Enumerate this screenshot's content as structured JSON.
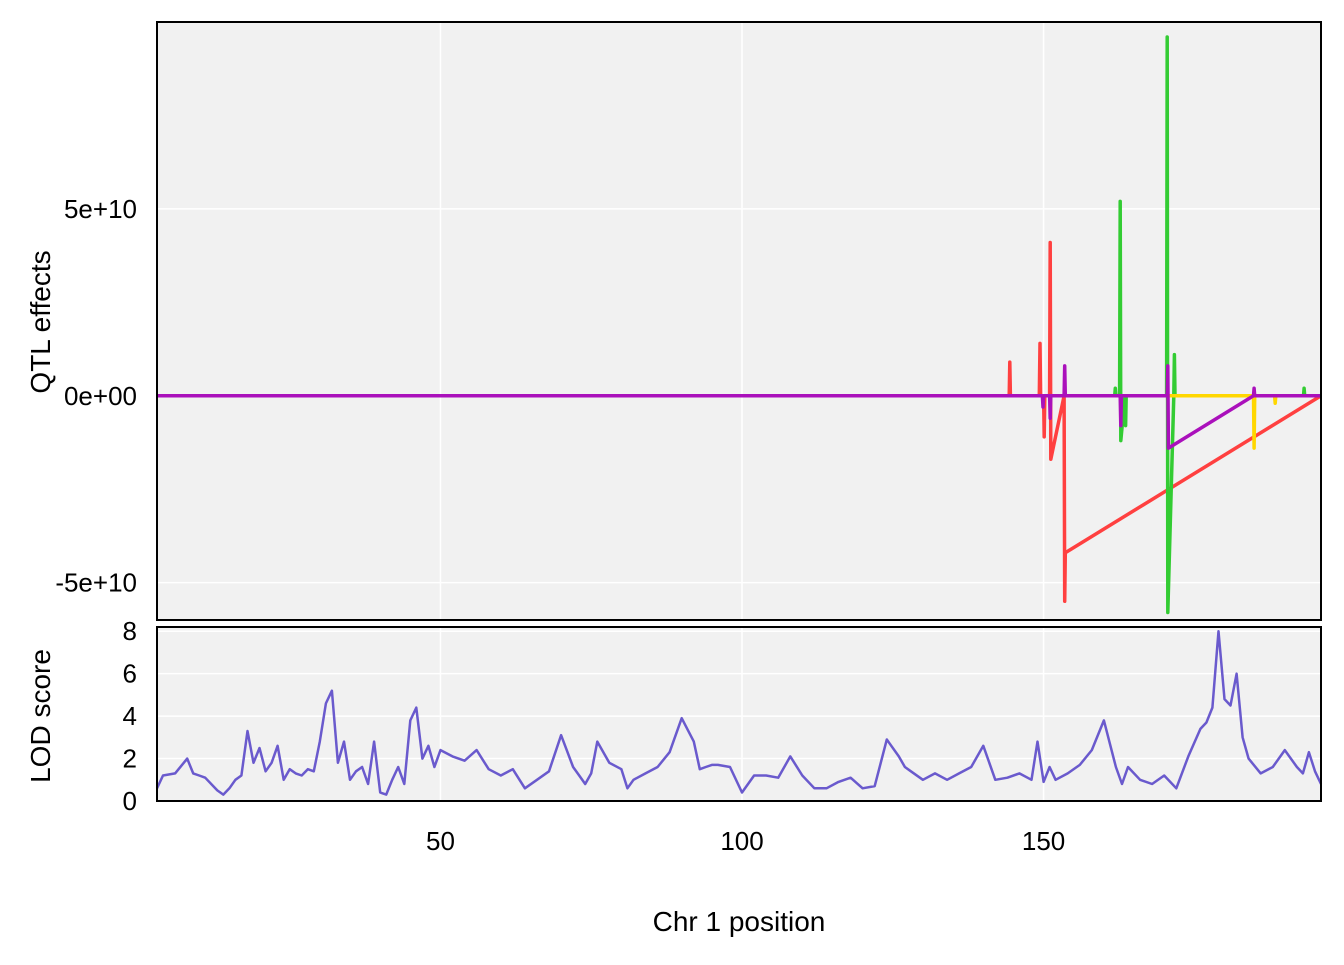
{
  "chart_data": [
    {
      "type": "line",
      "panel": "QTL effects",
      "ylabel": "QTL effects",
      "xlabel": "",
      "xlim": [
        3,
        196
      ],
      "ylim": [
        -60000000000,
        100000000000
      ],
      "xticks": [
        50,
        100,
        150
      ],
      "yticks": [
        -50000000000,
        0,
        50000000000
      ],
      "ytick_labels": [
        "-5e+10",
        "0e+00",
        "5e+10"
      ],
      "grid": true,
      "background": "#f1f1f1",
      "series": [
        {
          "color": "#ff4040",
          "x": [
            3,
            144.3,
            144.4,
            144.5,
            149.3,
            149.4,
            149.5,
            150.0,
            150.1,
            150.2,
            151.0,
            151.1,
            151.2,
            153.4,
            153.5,
            153.6,
            196
          ],
          "values": [
            0,
            0,
            9000000000,
            0,
            0,
            14000000000,
            0,
            0,
            -11000000000,
            0,
            0,
            41000000000,
            -17000000000,
            0,
            -55000000000,
            -42000000000,
            0
          ]
        },
        {
          "color": "#33cc33",
          "x": [
            3,
            161.8,
            161.9,
            162.0,
            162.6,
            162.7,
            162.8,
            163.5,
            163.6,
            163.7,
            170.4,
            170.5,
            170.6,
            171.6,
            171.7,
            171.8,
            193.1,
            193.2,
            193.3,
            196
          ],
          "values": [
            0,
            0,
            2000000000,
            0,
            0,
            52000000000,
            -12000000000,
            0,
            -8000000000,
            0,
            0,
            96000000000,
            -58000000000,
            0,
            11000000000,
            0,
            0,
            2000000000,
            0,
            0
          ]
        },
        {
          "color": "#ffd700",
          "x": [
            3,
            184.8,
            184.9,
            185.0,
            188.3,
            188.4,
            188.5,
            196
          ],
          "values": [
            0,
            0,
            -14000000000,
            0,
            0,
            -2000000000,
            0,
            0
          ]
        },
        {
          "color": "#aa10bb",
          "x": [
            3,
            149.8,
            149.9,
            150.0,
            151.0,
            151.1,
            151.2,
            153.4,
            153.5,
            153.6,
            162.7,
            162.8,
            162.9,
            170.5,
            170.6,
            170.7,
            184.8,
            184.9,
            185.0,
            196
          ],
          "values": [
            0,
            0,
            -3000000000,
            0,
            0,
            -6000000000,
            0,
            0,
            8000000000,
            0,
            0,
            -8000000000,
            0,
            0,
            8000000000,
            -14000000000,
            0,
            2000000000,
            0,
            0
          ]
        }
      ]
    },
    {
      "type": "line",
      "panel": "LOD score",
      "ylabel": "LOD score",
      "xlabel": "Chr 1 position",
      "xlim": [
        3,
        196
      ],
      "ylim": [
        0,
        8.2
      ],
      "xticks": [
        50,
        100,
        150
      ],
      "yticks": [
        0,
        2,
        4,
        6,
        8
      ],
      "ytick_labels": [
        "0",
        "2",
        "4",
        "6",
        "8"
      ],
      "grid": true,
      "background": "#f1f1f1",
      "series": [
        {
          "color": "#6a5acd",
          "x": [
            3,
            4,
            6,
            8,
            9,
            10,
            11,
            13,
            14,
            15,
            16,
            17,
            18,
            19,
            20,
            21,
            22,
            23,
            24,
            25,
            26,
            27,
            28,
            29,
            30,
            31,
            32,
            33,
            34,
            35,
            36,
            37,
            38,
            39,
            40,
            41,
            42,
            43,
            44,
            45,
            46,
            47,
            48,
            49,
            50,
            52,
            54,
            56,
            58,
            60,
            62,
            64,
            66,
            68,
            70,
            72,
            73,
            74,
            75,
            76,
            78,
            80,
            81,
            82,
            84,
            86,
            88,
            90,
            92,
            93,
            94,
            95,
            96,
            98,
            100,
            102,
            104,
            106,
            108,
            110,
            112,
            114,
            116,
            118,
            120,
            122,
            124,
            126,
            127,
            128,
            130,
            132,
            134,
            136,
            138,
            140,
            141,
            142,
            144,
            146,
            148,
            149,
            150,
            151,
            152,
            154,
            156,
            158,
            160,
            162,
            163,
            164,
            166,
            168,
            170,
            172,
            174,
            176,
            177,
            178,
            179,
            180,
            181,
            182,
            183,
            184,
            186,
            188,
            190,
            192,
            193,
            194,
            195,
            196
          ],
          "values": [
            0.6,
            1.2,
            1.3,
            2.0,
            1.3,
            1.2,
            1.1,
            0.5,
            0.3,
            0.6,
            1.0,
            1.2,
            3.3,
            1.8,
            2.5,
            1.4,
            1.8,
            2.6,
            1.0,
            1.5,
            1.3,
            1.2,
            1.5,
            1.4,
            2.8,
            4.6,
            5.2,
            1.8,
            2.8,
            1.0,
            1.4,
            1.6,
            0.8,
            2.8,
            0.4,
            0.3,
            1.0,
            1.6,
            0.8,
            3.8,
            4.4,
            2.0,
            2.6,
            1.6,
            2.4,
            2.1,
            1.9,
            2.4,
            1.5,
            1.2,
            1.5,
            0.6,
            1.0,
            1.4,
            3.1,
            1.6,
            1.2,
            0.8,
            1.3,
            2.8,
            1.8,
            1.5,
            0.6,
            1.0,
            1.3,
            1.6,
            2.3,
            3.9,
            2.8,
            1.5,
            1.6,
            1.7,
            1.7,
            1.6,
            0.4,
            1.2,
            1.2,
            1.1,
            2.1,
            1.2,
            0.6,
            0.6,
            0.9,
            1.1,
            0.6,
            0.7,
            2.9,
            2.1,
            1.6,
            1.4,
            1.0,
            1.3,
            1.0,
            1.3,
            1.6,
            2.6,
            1.8,
            1.0,
            1.1,
            1.3,
            1.0,
            2.8,
            0.9,
            1.6,
            1.0,
            1.3,
            1.7,
            2.4,
            3.8,
            1.6,
            0.8,
            1.6,
            1.0,
            0.8,
            1.2,
            0.6,
            2.1,
            3.4,
            3.7,
            4.4,
            8.0,
            4.8,
            4.5,
            6.0,
            3.0,
            2.0,
            1.3,
            1.6,
            2.4,
            1.6,
            1.3,
            2.3,
            1.4,
            0.8
          ]
        }
      ]
    }
  ]
}
